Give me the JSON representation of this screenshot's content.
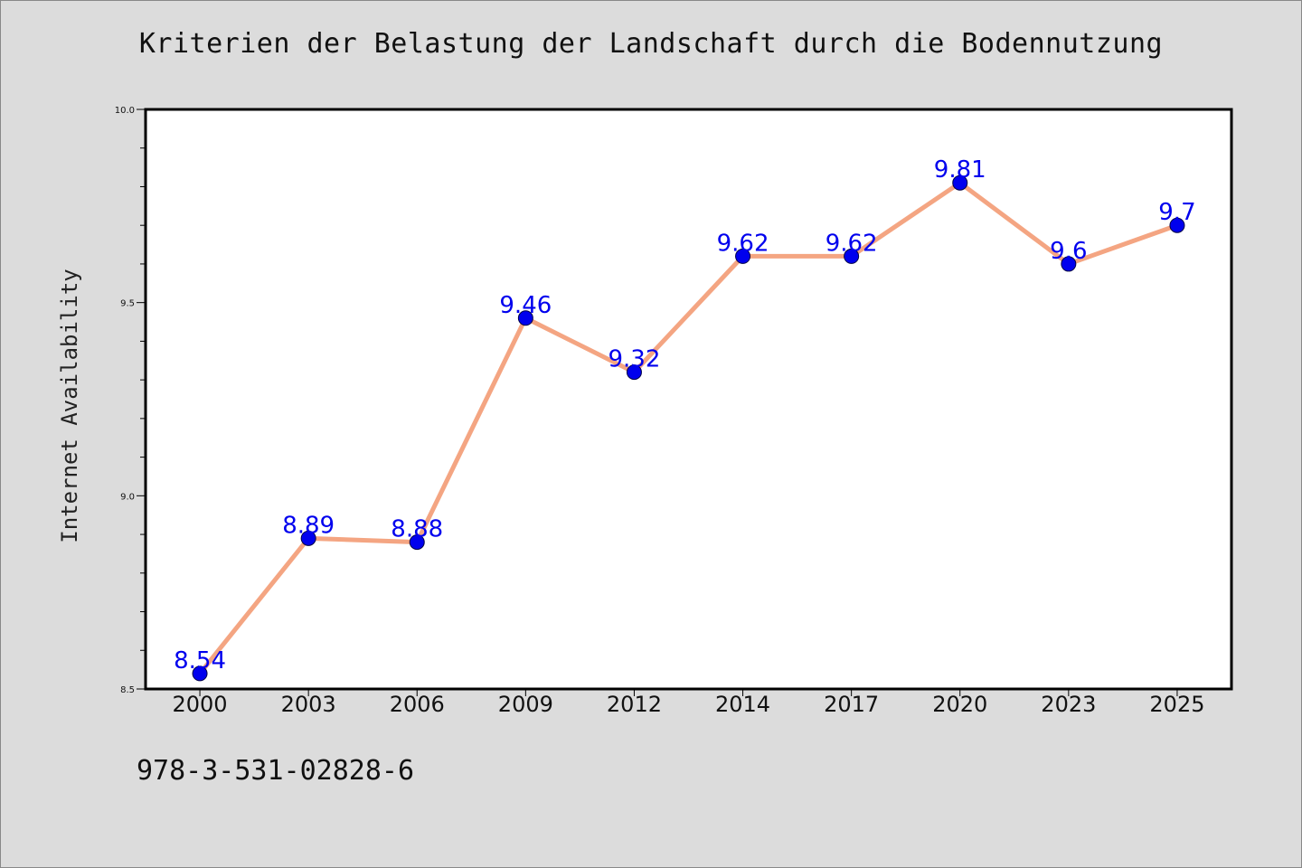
{
  "chart_data": {
    "type": "line",
    "title": "Kriterien der Belastung der Landschaft durch die Bodennutzung",
    "xlabel": "",
    "ylabel": "Internet Availability",
    "categories": [
      "2000",
      "2003",
      "2006",
      "2009",
      "2012",
      "2014",
      "2017",
      "2020",
      "2023",
      "2025"
    ],
    "series": [
      {
        "values": [
          8.54,
          8.89,
          8.88,
          9.46,
          9.32,
          9.62,
          9.62,
          9.81,
          9.6,
          9.7
        ],
        "line_color": "#f4a582",
        "marker_color": "#0000ee"
      }
    ],
    "data_labels": [
      "8.54",
      "8.89",
      "8.88",
      "9.46",
      "9.32",
      "9.62",
      "9.62",
      "9.81",
      "9.6",
      "9.7"
    ],
    "ylim": [
      8.5,
      10.0
    ],
    "yticks": [
      "8.5",
      "9.0",
      "9.5",
      "10.0"
    ],
    "ytick_values": [
      8.5,
      9.0,
      9.5,
      10.0
    ],
    "y_minor_step": 0.1,
    "grid": false,
    "legend": "none"
  },
  "footer": {
    "code": "978-3-531-02828-6"
  },
  "colors": {
    "background": "#dcdcdc",
    "plot_background": "#ffffff",
    "label_text": "#0000ee"
  }
}
